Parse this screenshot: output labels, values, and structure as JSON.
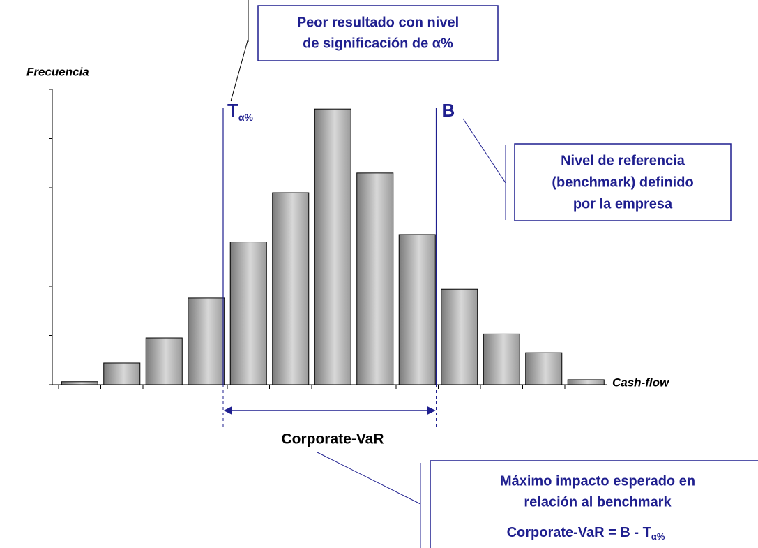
{
  "chart_data": {
    "type": "bar",
    "y_label": "Frecuencia",
    "x_label": "Cash-flow",
    "categories": [
      null,
      null,
      null,
      null,
      null,
      null,
      null,
      null,
      null,
      null,
      null,
      null,
      null
    ],
    "values": [
      0.06,
      0.44,
      0.95,
      1.76,
      2.9,
      3.9,
      5.6,
      4.3,
      3.05,
      1.94,
      1.03,
      0.65,
      0.1
    ],
    "color": "#b0b0b0",
    "ylim": [
      0,
      6
    ],
    "yticks": [
      0,
      1,
      2,
      3,
      4,
      5,
      6
    ],
    "annotations": {
      "threshold": {
        "text": "T",
        "sub": "α%"
      },
      "benchmark": "B",
      "threshold_note": [
        "Peor resultado con nivel",
        "de significación de α%"
      ],
      "benchmark_note": [
        "Nivel de referencia",
        "(benchmark) definido",
        "por la empresa"
      ],
      "var_label": "Corporate-VaR",
      "var_note": [
        "Máximo impacto esperado en",
        "relación al benchmark"
      ],
      "formula": {
        "text": "Corporate-VaR = B - T",
        "sub": "α%"
      }
    }
  }
}
